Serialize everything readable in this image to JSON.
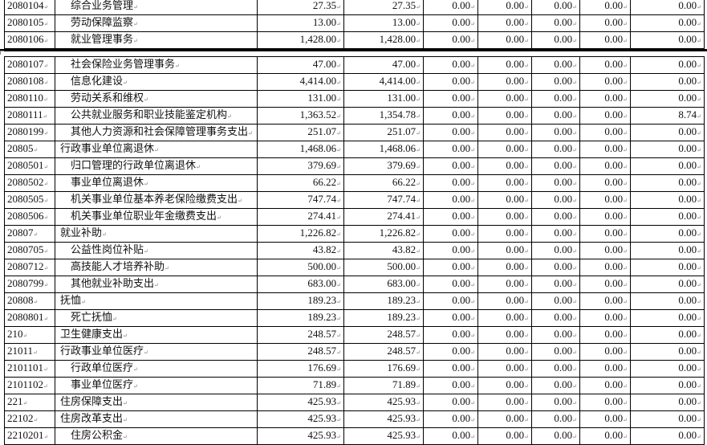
{
  "top_rows": [
    {
      "code": "2080104",
      "name": "综合业务管理",
      "level": 2,
      "v": [
        "27.35",
        "27.35",
        "0.00",
        "0.00",
        "0.00",
        "0.00",
        "0.00"
      ]
    },
    {
      "code": "2080105",
      "name": "劳动保障监察",
      "level": 2,
      "v": [
        "13.00",
        "13.00",
        "0.00",
        "0.00",
        "0.00",
        "0.00",
        "0.00"
      ]
    },
    {
      "code": "2080106",
      "name": "就业管理事务",
      "level": 2,
      "v": [
        "1,428.00",
        "1,428.00",
        "0.00",
        "0.00",
        "0.00",
        "0.00",
        "0.00"
      ]
    }
  ],
  "rows": [
    {
      "code": "2080107",
      "name": "社会保险业务管理事务",
      "level": 2,
      "v": [
        "47.00",
        "47.00",
        "0.00",
        "0.00",
        "0.00",
        "0.00",
        "0.00"
      ]
    },
    {
      "code": "2080108",
      "name": "信息化建设",
      "level": 2,
      "v": [
        "4,414.00",
        "4,414.00",
        "0.00",
        "0.00",
        "0.00",
        "0.00",
        "0.00"
      ]
    },
    {
      "code": "2080110",
      "name": "劳动关系和维权",
      "level": 2,
      "v": [
        "131.00",
        "131.00",
        "0.00",
        "0.00",
        "0.00",
        "0.00",
        "0.00"
      ]
    },
    {
      "code": "2080111",
      "name": "公共就业服务和职业技能鉴定机构",
      "level": 2,
      "v": [
        "1,363.52",
        "1,354.78",
        "0.00",
        "0.00",
        "0.00",
        "0.00",
        "8.74"
      ]
    },
    {
      "code": "2080199",
      "name": "其他人力资源和社会保障管理事务支出",
      "level": 2,
      "v": [
        "251.07",
        "251.07",
        "0.00",
        "0.00",
        "0.00",
        "0.00",
        "0.00"
      ]
    },
    {
      "code": "20805",
      "name": "行政事业单位离退休",
      "level": 1,
      "v": [
        "1,468.06",
        "1,468.06",
        "0.00",
        "0.00",
        "0.00",
        "0.00",
        "0.00"
      ]
    },
    {
      "code": "2080501",
      "name": "归口管理的行政单位离退休",
      "level": 2,
      "v": [
        "379.69",
        "379.69",
        "0.00",
        "0.00",
        "0.00",
        "0.00",
        "0.00"
      ]
    },
    {
      "code": "2080502",
      "name": "事业单位离退休",
      "level": 2,
      "v": [
        "66.22",
        "66.22",
        "0.00",
        "0.00",
        "0.00",
        "0.00",
        "0.00"
      ]
    },
    {
      "code": "2080505",
      "name": "机关事业单位基本养老保险缴费支出",
      "level": 2,
      "v": [
        "747.74",
        "747.74",
        "0.00",
        "0.00",
        "0.00",
        "0.00",
        "0.00"
      ]
    },
    {
      "code": "2080506",
      "name": "机关事业单位职业年金缴费支出",
      "level": 2,
      "v": [
        "274.41",
        "274.41",
        "0.00",
        "0.00",
        "0.00",
        "0.00",
        "0.00"
      ]
    },
    {
      "code": "20807",
      "name": "就业补助",
      "level": 1,
      "v": [
        "1,226.82",
        "1,226.82",
        "0.00",
        "0.00",
        "0.00",
        "0.00",
        "0.00"
      ]
    },
    {
      "code": "2080705",
      "name": "公益性岗位补贴",
      "level": 2,
      "v": [
        "43.82",
        "43.82",
        "0.00",
        "0.00",
        "0.00",
        "0.00",
        "0.00"
      ]
    },
    {
      "code": "2080712",
      "name": "高技能人才培养补助",
      "level": 2,
      "v": [
        "500.00",
        "500.00",
        "0.00",
        "0.00",
        "0.00",
        "0.00",
        "0.00"
      ]
    },
    {
      "code": "2080799",
      "name": "其他就业补助支出",
      "level": 2,
      "v": [
        "683.00",
        "683.00",
        "0.00",
        "0.00",
        "0.00",
        "0.00",
        "0.00"
      ]
    },
    {
      "code": "20808",
      "name": "抚恤",
      "level": 1,
      "v": [
        "189.23",
        "189.23",
        "0.00",
        "0.00",
        "0.00",
        "0.00",
        "0.00"
      ]
    },
    {
      "code": "2080801",
      "name": "死亡抚恤",
      "level": 2,
      "v": [
        "189.23",
        "189.23",
        "0.00",
        "0.00",
        "0.00",
        "0.00",
        "0.00"
      ]
    },
    {
      "code": "210",
      "name": "卫生健康支出",
      "level": 1,
      "v": [
        "248.57",
        "248.57",
        "0.00",
        "0.00",
        "0.00",
        "0.00",
        "0.00"
      ]
    },
    {
      "code": "21011",
      "name": "行政事业单位医疗",
      "level": 1,
      "v": [
        "248.57",
        "248.57",
        "0.00",
        "0.00",
        "0.00",
        "0.00",
        "0.00"
      ]
    },
    {
      "code": "2101101",
      "name": "行政单位医疗",
      "level": 2,
      "v": [
        "176.69",
        "176.69",
        "0.00",
        "0.00",
        "0.00",
        "0.00",
        "0.00"
      ]
    },
    {
      "code": "2101102",
      "name": "事业单位医疗",
      "level": 2,
      "v": [
        "71.89",
        "71.89",
        "0.00",
        "0.00",
        "0.00",
        "0.00",
        "0.00"
      ]
    },
    {
      "code": "221",
      "name": "住房保障支出",
      "level": 1,
      "v": [
        "425.93",
        "425.93",
        "0.00",
        "0.00",
        "0.00",
        "0.00",
        "0.00"
      ]
    },
    {
      "code": "22102",
      "name": "住房改革支出",
      "level": 1,
      "v": [
        "425.93",
        "425.93",
        "0.00",
        "0.00",
        "0.00",
        "0.00",
        "0.00"
      ]
    },
    {
      "code": "2210201",
      "name": "住房公积金",
      "level": 2,
      "v": [
        "425.93",
        "425.93",
        "0.00",
        "0.00",
        "0.00",
        "0.00",
        "0.00"
      ]
    }
  ]
}
